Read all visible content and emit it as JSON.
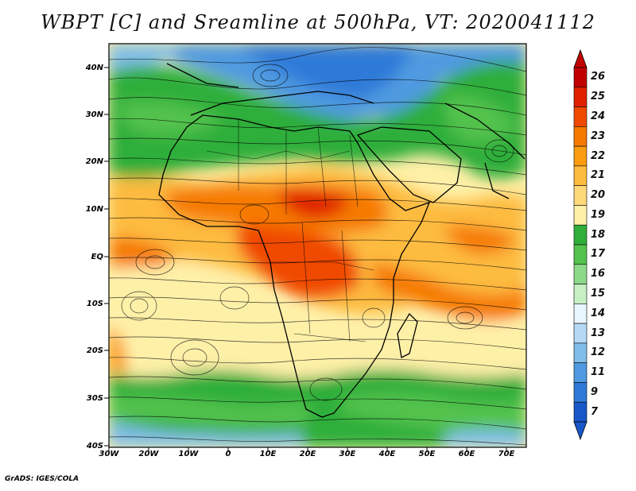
{
  "title": "WBPT [C] and Sreamline at 500hPa, VT: 2020041112",
  "credit": "GrADS: IGES/COLA",
  "map": {
    "lat_labels": [
      "40N",
      "30N",
      "20N",
      "10N",
      "EQ",
      "10S",
      "20S",
      "30S",
      "40S"
    ],
    "lon_labels": [
      "30W",
      "20W",
      "10W",
      "0",
      "10E",
      "20E",
      "30E",
      "40E",
      "50E",
      "60E",
      "70E"
    ],
    "field": "Wet-bulb potential temperature with streamlines",
    "region": {
      "lat_range": [
        -40,
        45
      ],
      "lon_range": [
        -30,
        75
      ]
    }
  },
  "colorbar": {
    "levels": [
      "26",
      "25",
      "24",
      "23",
      "22",
      "21",
      "20",
      "19",
      "18",
      "17",
      "16",
      "15",
      "14",
      "13",
      "12",
      "11",
      "9",
      "7"
    ],
    "colors": [
      "#c00000",
      "#e02000",
      "#f04a00",
      "#f67a00",
      "#fb9c10",
      "#fdbb40",
      "#fdd97a",
      "#fff0a8",
      "#2fae3a",
      "#53c24e",
      "#8dd98a",
      "#c6efc4",
      "#e8f6ff",
      "#b5d9f5",
      "#80bde8",
      "#4f9ae0",
      "#2f7ad8",
      "#1857c8"
    ]
  }
}
